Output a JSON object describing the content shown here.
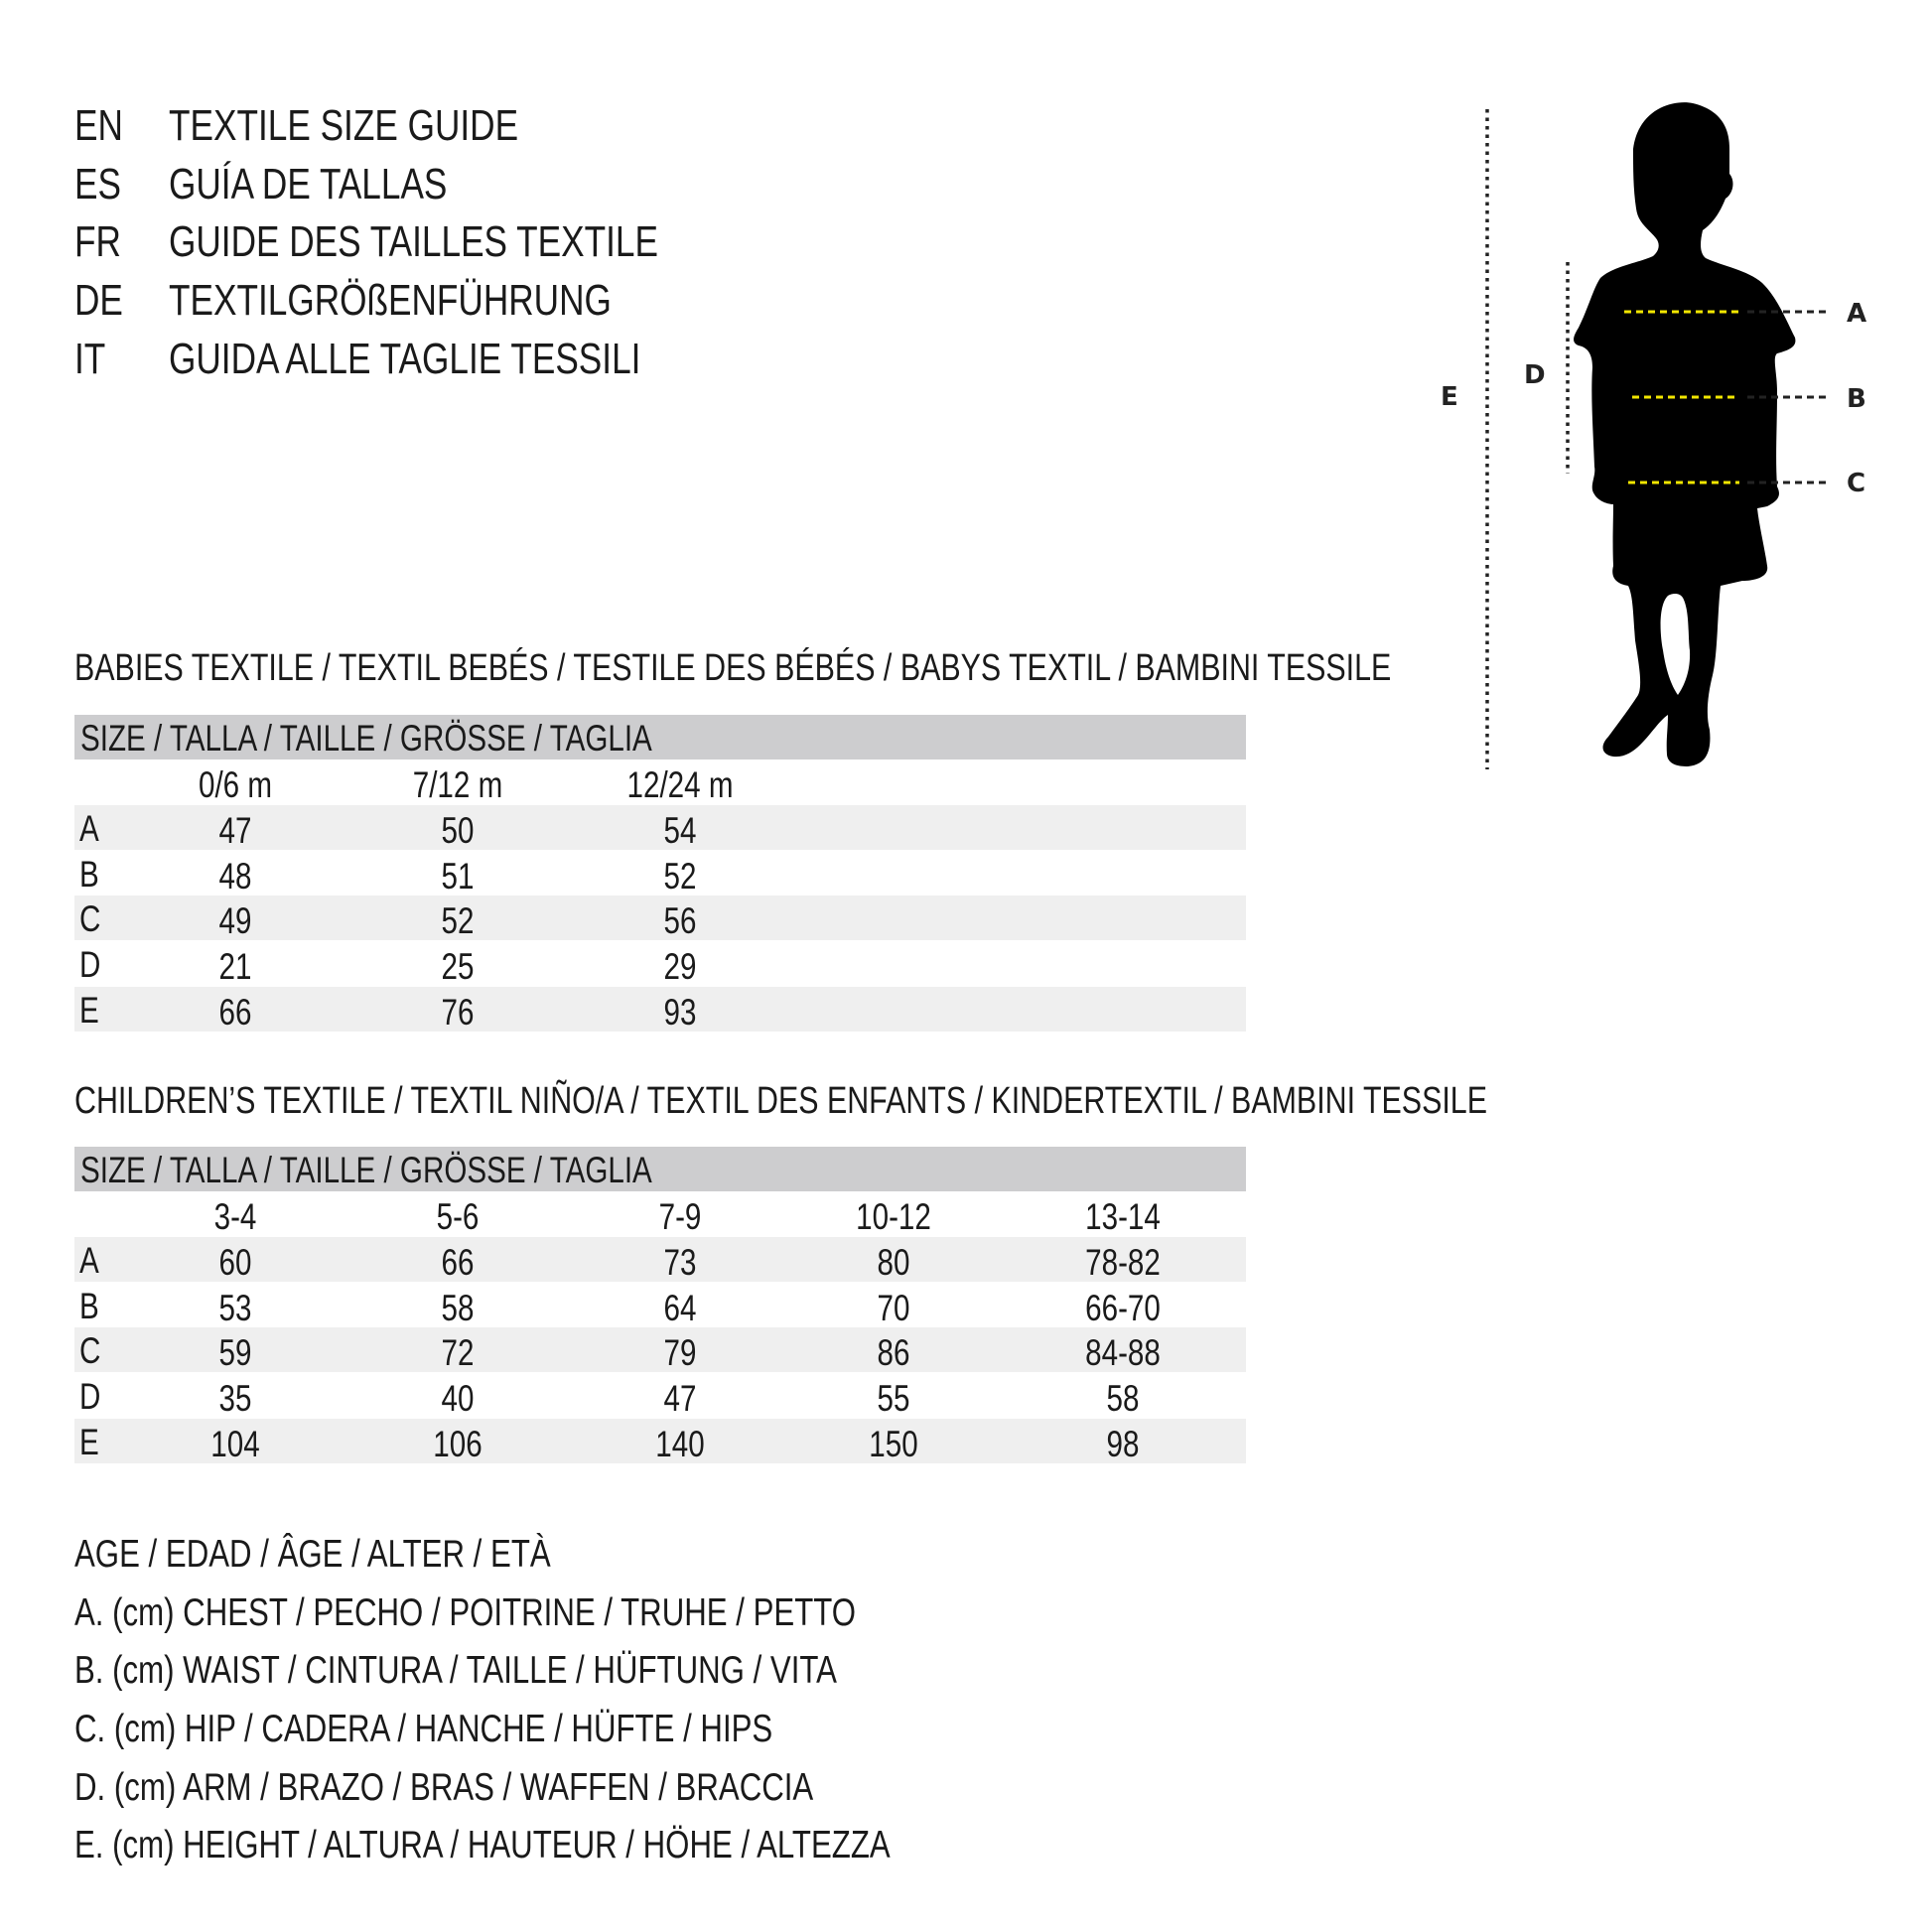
{
  "titles": [
    {
      "lang": "EN",
      "text": "TEXTILE SIZE GUIDE"
    },
    {
      "lang": "ES",
      "text": "GUÍA DE TALLAS"
    },
    {
      "lang": "FR",
      "text": "GUIDE DES TAILLES TEXTILE"
    },
    {
      "lang": "DE",
      "text": "TEXTILGRÖßENFÜHRUNG"
    },
    {
      "lang": "IT",
      "text": "GUIDA ALLE TAGLIE TESSILI"
    }
  ],
  "babies": {
    "heading": "BABIES TEXTILE / TEXTIL BEBÉS / TESTILE DES BÉBÉS / BABYS TEXTIL / BAMBINI TESSILE",
    "size_header": "SIZE / TALLA / TAILLE / GRÖSSE / TAGLIA",
    "columns": [
      "0/6 m",
      "7/12 m",
      "12/24 m"
    ],
    "rows": [
      {
        "label": "A",
        "values": [
          "47",
          "50",
          "54"
        ]
      },
      {
        "label": "B",
        "values": [
          "48",
          "51",
          "52"
        ]
      },
      {
        "label": "C",
        "values": [
          "49",
          "52",
          "56"
        ]
      },
      {
        "label": "D",
        "values": [
          "21",
          "25",
          "29"
        ]
      },
      {
        "label": "E",
        "values": [
          "66",
          "76",
          "93"
        ]
      }
    ]
  },
  "children": {
    "heading": "CHILDREN’S TEXTILE / TEXTIL NIÑO/A / TEXTIL DES ENFANTS / KINDERTEXTIL / BAMBINI TESSILE",
    "size_header": "SIZE / TALLA / TAILLE / GRÖSSE / TAGLIA",
    "columns": [
      "3-4",
      "5-6",
      "7-9",
      "10-12",
      "13-14"
    ],
    "rows": [
      {
        "label": "A",
        "values": [
          "60",
          "66",
          "73",
          "80",
          "78-82"
        ]
      },
      {
        "label": "B",
        "values": [
          "53",
          "58",
          "64",
          "70",
          "66-70"
        ]
      },
      {
        "label": "C",
        "values": [
          "59",
          "72",
          "79",
          "86",
          "84-88"
        ]
      },
      {
        "label": "D",
        "values": [
          "35",
          "40",
          "47",
          "55",
          "58"
        ]
      },
      {
        "label": "E",
        "values": [
          "104",
          "106",
          "140",
          "150",
          "98"
        ]
      }
    ]
  },
  "legend": [
    "AGE / EDAD / ÂGE / ALTER / ETÀ",
    "A. (cm) CHEST / PECHO / POITRINE / TRUHE / PETTO",
    "B. (cm) WAIST / CINTURA / TAILLE / HÜFTUNG / VITA",
    "C. (cm) HIP / CADERA / HANCHE / HÜFTE / HIPS",
    "D. (cm) ARM / BRAZO / BRAS / WAFFEN / BRACCIA",
    "E. (cm) HEIGHT / ALTURA / HAUTEUR / HÖHE / ALTEZZA"
  ],
  "figure": {
    "labels": {
      "A": "A",
      "B": "B",
      "C": "C",
      "D": "D",
      "E": "E"
    },
    "icon": "child-silhouette-icon",
    "measure_line_color": "#f2e600",
    "band_color": "#cdcdcf",
    "stripe_color": "#efefef"
  }
}
